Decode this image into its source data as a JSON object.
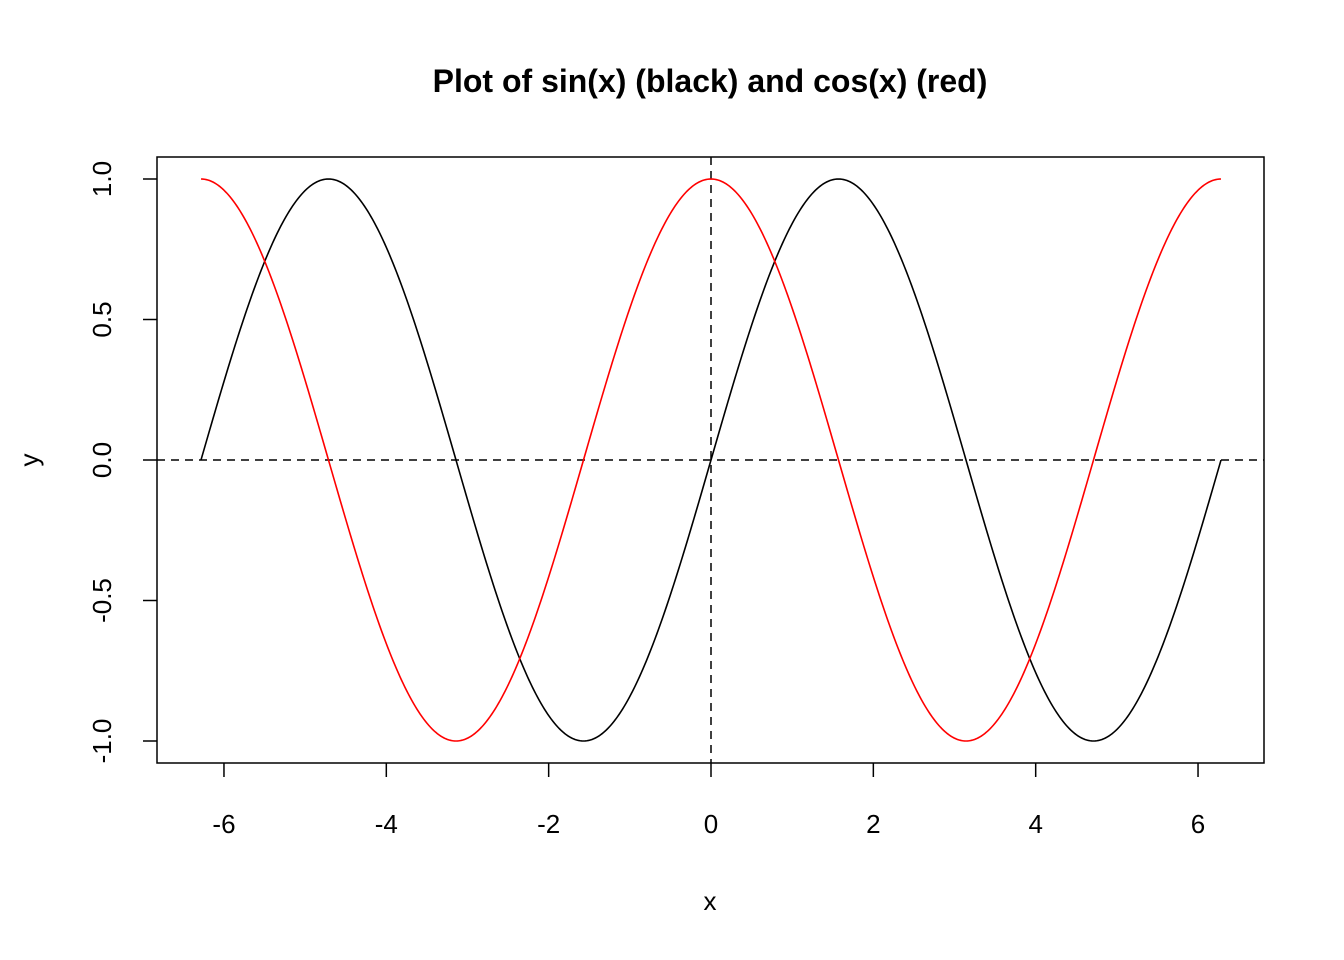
{
  "chart_data": {
    "type": "line",
    "title": "Plot of sin(x) (black) and cos(x) (red)",
    "xlabel": "x",
    "ylabel": "y",
    "xlim": [
      -6.283,
      6.283
    ],
    "ylim": [
      -1.0,
      1.0
    ],
    "xticks": [
      -6,
      -4,
      -2,
      0,
      2,
      4,
      6
    ],
    "xtick_labels": [
      "-6",
      "-4",
      "-2",
      "0",
      "2",
      "4",
      "6"
    ],
    "yticks": [
      -1.0,
      -0.5,
      0.0,
      0.5,
      1.0
    ],
    "ytick_labels": [
      "-1.0",
      "-0.5",
      "0.0",
      "0.5",
      "1.0"
    ],
    "grid": false,
    "reference_lines": [
      {
        "orientation": "horizontal",
        "value": 0,
        "style": "dashed",
        "color": "#000000"
      },
      {
        "orientation": "vertical",
        "value": 0,
        "style": "dashed",
        "color": "#000000"
      }
    ],
    "series": [
      {
        "function": "sin",
        "color": "#000000",
        "x": [
          -6.283,
          -6.0,
          -5.5,
          -5.0,
          -4.712,
          -4.5,
          -4.0,
          -3.5,
          -3.142,
          -3.0,
          -2.5,
          -2.0,
          -1.571,
          -1.5,
          -1.0,
          -0.5,
          0.0,
          0.5,
          1.0,
          1.5,
          1.571,
          2.0,
          2.5,
          3.0,
          3.142,
          3.5,
          4.0,
          4.5,
          4.712,
          5.0,
          5.5,
          6.0,
          6.283
        ],
        "y": [
          0.0,
          0.279,
          0.706,
          0.959,
          1.0,
          0.978,
          0.757,
          0.351,
          0.0,
          -0.141,
          -0.598,
          -0.909,
          -1.0,
          -0.997,
          -0.841,
          -0.479,
          0.0,
          0.479,
          0.841,
          0.997,
          1.0,
          0.909,
          0.598,
          0.141,
          0.0,
          -0.351,
          -0.757,
          -0.978,
          -1.0,
          -0.959,
          -0.706,
          -0.279,
          0.0
        ]
      },
      {
        "function": "cos",
        "color": "#ff0000",
        "x": [
          -6.283,
          -6.0,
          -5.5,
          -5.0,
          -4.712,
          -4.5,
          -4.0,
          -3.5,
          -3.142,
          -3.0,
          -2.5,
          -2.0,
          -1.571,
          -1.5,
          -1.0,
          -0.5,
          0.0,
          0.5,
          1.0,
          1.5,
          1.571,
          2.0,
          2.5,
          3.0,
          3.142,
          3.5,
          4.0,
          4.5,
          4.712,
          5.0,
          5.5,
          6.0,
          6.283
        ],
        "y": [
          1.0,
          0.96,
          0.709,
          0.284,
          0.0,
          -0.211,
          -0.654,
          -0.936,
          -1.0,
          -0.99,
          -0.801,
          -0.416,
          0.0,
          0.071,
          0.54,
          0.878,
          1.0,
          0.878,
          0.54,
          0.071,
          0.0,
          -0.416,
          -0.801,
          -0.99,
          -1.0,
          -0.936,
          -0.654,
          -0.211,
          0.0,
          0.284,
          0.709,
          0.96,
          1.0
        ]
      }
    ]
  }
}
